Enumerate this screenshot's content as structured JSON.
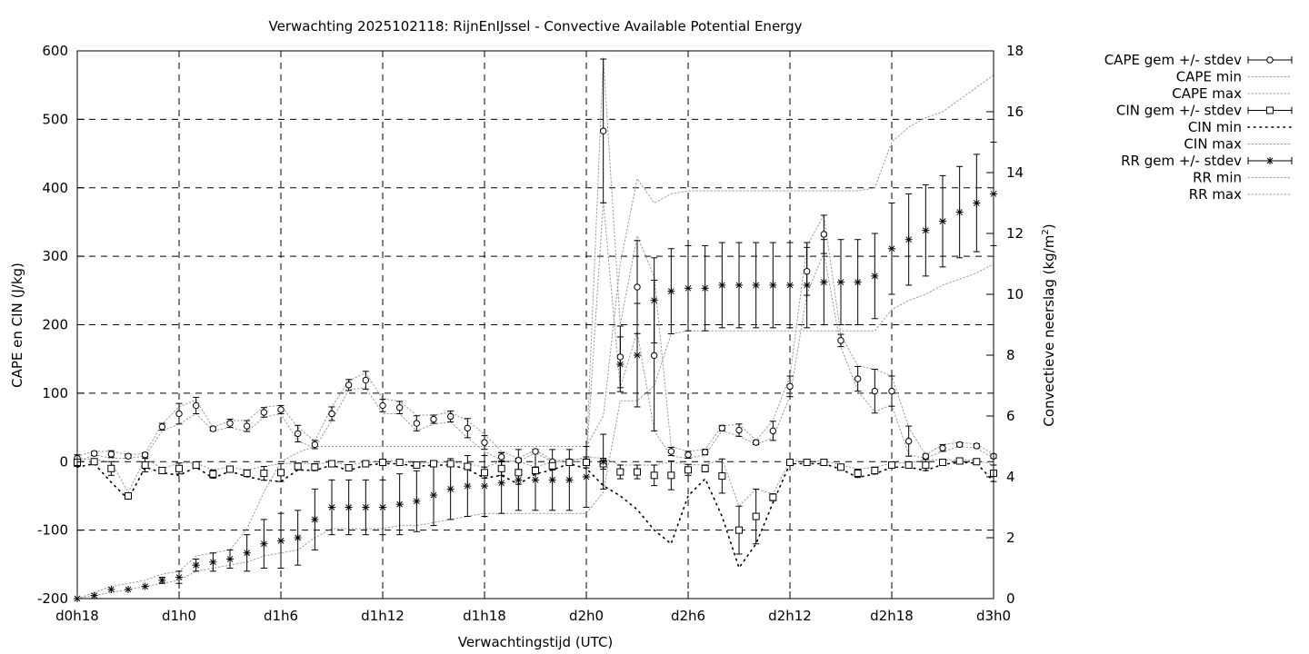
{
  "chart_data": {
    "type": "line",
    "title": "Verwachting 2025102118: RijnEnIJssel - Convective Available Potential Energy",
    "xlabel": "Verwachtingstijd (UTC)",
    "ylabel_left": "CAPE en CIN (J/kg)",
    "ylabel_right_main": "Convectieve neerslag (kg/m",
    "ylabel_right_sup": "2",
    "ylabel_right_end": ")",
    "ylim_left": [
      -200,
      600
    ],
    "ylim_right": [
      0,
      18
    ],
    "xlim": [
      0,
      54
    ],
    "yticks_left": [
      -200,
      -100,
      0,
      100,
      200,
      300,
      400,
      500,
      600
    ],
    "yticks_right": [
      0,
      2,
      4,
      6,
      8,
      10,
      12,
      14,
      16,
      18
    ],
    "xticks": [
      {
        "x": 0,
        "label": "d0h18"
      },
      {
        "x": 6,
        "label": "d1h0"
      },
      {
        "x": 12,
        "label": "d1h6"
      },
      {
        "x": 18,
        "label": "d1h12"
      },
      {
        "x": 24,
        "label": "d1h18"
      },
      {
        "x": 30,
        "label": "d2h0"
      },
      {
        "x": 36,
        "label": "d2h6"
      },
      {
        "x": 42,
        "label": "d2h12"
      },
      {
        "x": 48,
        "label": "d2h18"
      },
      {
        "x": 54,
        "label": "d3h0"
      }
    ],
    "grid": true,
    "legend_position": "outside-right",
    "legend": [
      {
        "label": "CAPE gem +/- stdev",
        "style": "errorbar-circle"
      },
      {
        "label": "CAPE min",
        "style": "dotted"
      },
      {
        "label": "CAPE max",
        "style": "dotted"
      },
      {
        "label": "CIN gem +/- stdev",
        "style": "errorbar-square"
      },
      {
        "label": "CIN min",
        "style": "dots-sparse"
      },
      {
        "label": "CIN max",
        "style": "dotted"
      },
      {
        "label": "RR gem +/- stdev",
        "style": "errorbar-star"
      },
      {
        "label": "RR min",
        "style": "dotted"
      },
      {
        "label": "RR max",
        "style": "dotted"
      }
    ],
    "x": [
      0,
      1,
      2,
      3,
      4,
      5,
      6,
      7,
      8,
      9,
      10,
      11,
      12,
      13,
      14,
      15,
      16,
      17,
      18,
      19,
      20,
      21,
      22,
      23,
      24,
      25,
      26,
      27,
      28,
      29,
      30,
      31,
      32,
      33,
      34,
      35,
      36,
      37,
      38,
      39,
      40,
      41,
      42,
      43,
      44,
      45,
      46,
      47,
      48,
      49,
      50,
      51,
      52,
      53,
      54
    ],
    "series": [
      {
        "name": "CAPE gem +/- stdev",
        "axis": "left",
        "marker": "circle",
        "values": [
          5,
          12,
          11,
          8,
          10,
          51,
          70,
          82,
          48,
          56,
          52,
          72,
          76,
          41,
          25,
          70,
          112,
          119,
          82,
          79,
          56,
          62,
          66,
          49,
          28,
          7,
          2,
          15,
          0,
          0,
          0,
          483,
          153,
          255,
          155,
          15,
          10,
          14,
          49,
          46,
          28,
          45,
          110,
          278,
          332,
          177,
          121,
          103,
          103,
          30,
          8,
          20,
          25,
          23,
          8
        ],
        "stdev": [
          5,
          3,
          5,
          3,
          3,
          5,
          15,
          12,
          3,
          6,
          8,
          7,
          6,
          12,
          6,
          10,
          8,
          13,
          9,
          9,
          11,
          6,
          8,
          14,
          10,
          6,
          3,
          2,
          2,
          2,
          2,
          105,
          45,
          68,
          110,
          6,
          5,
          4,
          4,
          9,
          3,
          14,
          15,
          35,
          28,
          9,
          18,
          32,
          22,
          22,
          3,
          5,
          3,
          3,
          3
        ]
      },
      {
        "name": "CIN gem +/- stdev",
        "axis": "left",
        "marker": "square",
        "values": [
          -1,
          0,
          -10,
          -50,
          -5,
          -13,
          -10,
          -5,
          -18,
          -11,
          -17,
          -17,
          -16,
          -7,
          -8,
          -3,
          -9,
          -3,
          -1,
          -1,
          -5,
          -3,
          -3,
          -7,
          -16,
          -10,
          -16,
          -13,
          -6,
          -1,
          -1,
          -3,
          -15,
          -15,
          -20,
          -20,
          -12,
          -10,
          -21,
          -100,
          -80,
          -52,
          -1,
          -1,
          -1,
          -8,
          -17,
          -13,
          -5,
          -5,
          -5,
          -1,
          1,
          0,
          -17
        ],
        "stdev": [
          6,
          3,
          10,
          4,
          10,
          3,
          8,
          3,
          6,
          3,
          5,
          10,
          13,
          5,
          5,
          2,
          4,
          2,
          2,
          2,
          2,
          2,
          2,
          4,
          8,
          10,
          17,
          5,
          6,
          2,
          8,
          8,
          10,
          10,
          15,
          21,
          8,
          5,
          25,
          35,
          40,
          5,
          2,
          2,
          2,
          3,
          6,
          5,
          3,
          3,
          8,
          3,
          2,
          2,
          12
        ]
      },
      {
        "name": "RR gem +/- stdev",
        "axis": "right",
        "marker": "star",
        "values": [
          0,
          0.1,
          0.3,
          0.3,
          0.4,
          0.6,
          0.7,
          1.1,
          1.2,
          1.3,
          1.5,
          1.8,
          1.9,
          2.0,
          2.6,
          3.0,
          3.0,
          3.0,
          3.0,
          3.1,
          3.2,
          3.4,
          3.6,
          3.7,
          3.7,
          3.8,
          3.9,
          3.9,
          3.9,
          3.9,
          4.0,
          4.5,
          7.7,
          8.0,
          9.8,
          10.1,
          10.2,
          10.2,
          10.3,
          10.3,
          10.3,
          10.3,
          10.3,
          10.3,
          10.4,
          10.4,
          10.4,
          10.6,
          11.5,
          11.8,
          12.1,
          12.4,
          12.7,
          13.0,
          13.3
        ],
        "stdev": [
          0,
          0,
          0,
          0,
          0,
          0.1,
          0.2,
          0.2,
          0.3,
          0.3,
          0.6,
          0.8,
          0.9,
          0.9,
          1.0,
          0.9,
          0.9,
          0.9,
          0.9,
          1.0,
          1.0,
          1.0,
          1.0,
          1.0,
          1.0,
          1.0,
          1.0,
          1.0,
          1.0,
          1.0,
          1.0,
          0.9,
          0.9,
          1.7,
          1.4,
          1.4,
          1.4,
          1.4,
          1.4,
          1.4,
          1.4,
          1.4,
          1.4,
          1.4,
          1.4,
          1.4,
          1.4,
          1.4,
          1.5,
          1.5,
          1.5,
          1.5,
          1.5,
          1.6,
          1.7
        ]
      },
      {
        "name": "CAPE min",
        "axis": "left",
        "style": "dotted",
        "values": [
          0,
          10,
          5,
          5,
          8,
          45,
          55,
          70,
          45,
          50,
          44,
          65,
          70,
          30,
          20,
          60,
          105,
          108,
          70,
          70,
          45,
          55,
          58,
          35,
          15,
          2,
          0,
          13,
          0,
          0,
          0,
          380,
          108,
          190,
          45,
          8,
          5,
          10,
          45,
          37,
          25,
          35,
          95,
          245,
          305,
          168,
          103,
          73,
          83,
          10,
          5,
          15,
          22,
          20,
          5
        ]
      },
      {
        "name": "CAPE max",
        "axis": "left",
        "style": "dotted",
        "values": [
          8,
          15,
          15,
          10,
          12,
          55,
          80,
          90,
          50,
          60,
          60,
          80,
          82,
          50,
          30,
          80,
          118,
          130,
          92,
          88,
          68,
          68,
          72,
          60,
          40,
          15,
          5,
          17,
          2,
          2,
          5,
          590,
          200,
          330,
          270,
          22,
          15,
          18,
          52,
          55,
          31,
          60,
          125,
          315,
          360,
          185,
          140,
          135,
          125,
          50,
          10,
          25,
          28,
          26,
          10
        ]
      },
      {
        "name": "CIN min",
        "axis": "left",
        "style": "dots-sparse",
        "values": [
          -8,
          -3,
          -30,
          -55,
          -8,
          -16,
          -20,
          -8,
          -24,
          -14,
          -22,
          -27,
          -29,
          -12,
          -13,
          -5,
          -13,
          -5,
          -3,
          -3,
          -7,
          -5,
          -5,
          -11,
          -24,
          -20,
          -33,
          -18,
          -12,
          -3,
          -10,
          -35,
          -50,
          -70,
          -100,
          -120,
          -50,
          -25,
          -80,
          -155,
          -120,
          -60,
          -3,
          -3,
          -3,
          -11,
          -23,
          -18,
          -8,
          -8,
          -13,
          -4,
          -1,
          -2,
          -29
        ]
      },
      {
        "name": "CIN max",
        "axis": "left",
        "style": "dotted",
        "values": [
          5,
          3,
          0,
          -45,
          5,
          -10,
          -2,
          -2,
          -12,
          -8,
          -12,
          -7,
          -3,
          -2,
          -3,
          -1,
          -5,
          -1,
          1,
          1,
          -3,
          -1,
          -1,
          -3,
          -8,
          0,
          1,
          -8,
          0,
          1,
          7,
          5,
          -5,
          -5,
          -5,
          0,
          -4,
          -5,
          4,
          -65,
          -40,
          -47,
          1,
          1,
          1,
          -5,
          -11,
          -8,
          -2,
          -2,
          3,
          2,
          3,
          2,
          -5
        ]
      },
      {
        "name": "RR min",
        "axis": "right",
        "style": "dotted",
        "values": [
          0,
          0.1,
          0.2,
          0.3,
          0.4,
          0.5,
          0.6,
          0.9,
          1.0,
          1.1,
          1.2,
          1.4,
          1.5,
          1.6,
          2.0,
          2.3,
          2.3,
          2.3,
          2.3,
          2.4,
          2.4,
          2.5,
          2.6,
          2.7,
          2.8,
          2.8,
          2.8,
          2.8,
          2.8,
          2.8,
          2.8,
          3.5,
          6.5,
          6.5,
          7.0,
          8.7,
          8.8,
          8.8,
          8.8,
          8.8,
          8.8,
          8.8,
          8.8,
          8.8,
          8.8,
          8.8,
          8.8,
          8.8,
          9.5,
          9.8,
          10.0,
          10.3,
          10.5,
          10.7,
          11.0
        ]
      },
      {
        "name": "RR max",
        "axis": "right",
        "style": "dotted",
        "values": [
          0,
          0.2,
          0.4,
          0.5,
          0.6,
          0.8,
          0.9,
          1.4,
          1.5,
          1.6,
          2.3,
          3.5,
          4.5,
          4.8,
          5.0,
          5.0,
          5.0,
          5.0,
          5.0,
          5.0,
          5.0,
          5.0,
          5.0,
          5.0,
          5.0,
          5.0,
          5.0,
          5.0,
          5.0,
          5.0,
          5.0,
          6.0,
          11.0,
          13.8,
          13.0,
          13.3,
          13.4,
          13.4,
          13.4,
          13.4,
          13.4,
          13.4,
          13.4,
          13.4,
          13.4,
          13.4,
          13.4,
          13.5,
          15.0,
          15.5,
          15.8,
          16.0,
          16.4,
          16.8,
          17.2
        ]
      }
    ]
  }
}
